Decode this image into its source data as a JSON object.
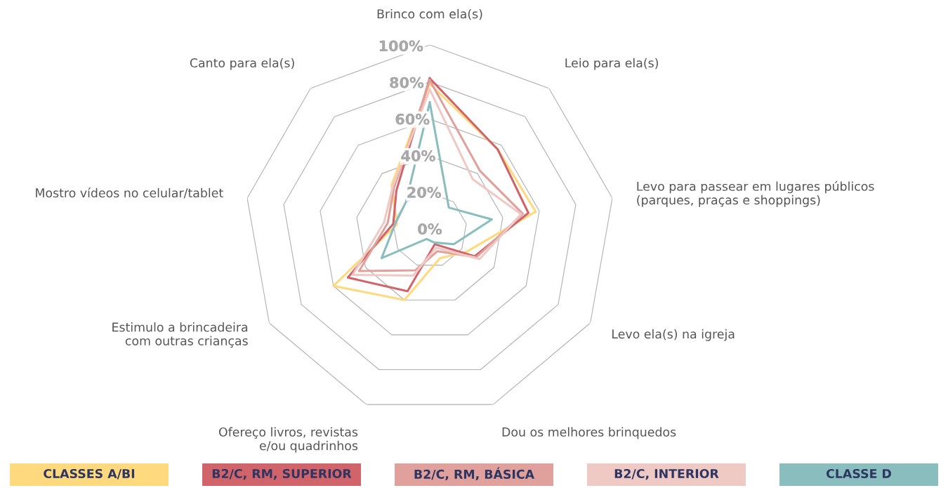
{
  "chart_data": {
    "type": "radar",
    "categories": [
      "Brinco com ela(s)",
      "Leio para ela(s)",
      "Levo para passear em lugares públicos\n(parques, praças e shoppings)",
      "Levo ela(s) na igreja",
      "Dou os melhores brinquedos",
      "Ofereço livros, revistas\ne/ou quadrinhos",
      "Estimulo a brincadeira\ncom outras crianças",
      "Mostro vídeos no celular/tablet",
      "Canto para ela(s)"
    ],
    "series": [
      {
        "name": "CLASSES A/BI",
        "color": "#ffd97d",
        "values": [
          79,
          57,
          58,
          23,
          16,
          40,
          60,
          18,
          32
        ]
      },
      {
        "name": "B2/C, RM, SUPERIOR",
        "color": "#d0646a",
        "values": [
          82,
          57,
          54,
          28,
          8,
          35,
          51,
          20,
          28
        ]
      },
      {
        "name": "B2/C, RM, BÁSICA",
        "color": "#e0a09c",
        "values": [
          81,
          42,
          51,
          29,
          12,
          23,
          44,
          23,
          30
        ]
      },
      {
        "name": "B2/C, INTERIOR",
        "color": "#efc9c4",
        "values": [
          76,
          36,
          50,
          31,
          10,
          26,
          48,
          25,
          31
        ]
      },
      {
        "name": "CLASSE D",
        "color": "#8abdbd",
        "values": [
          69,
          16,
          34,
          15,
          7,
          5,
          30,
          19,
          20
        ]
      }
    ],
    "ylim": [
      0,
      100
    ],
    "yticks": [
      {
        "value": 0,
        "label": "0%"
      },
      {
        "value": 20,
        "label": "20%"
      },
      {
        "value": 40,
        "label": "40%"
      },
      {
        "value": 60,
        "label": "60%"
      },
      {
        "value": 80,
        "label": "80%"
      },
      {
        "value": 100,
        "label": "100%"
      }
    ],
    "grid": true,
    "legend": "bottom",
    "marker": "none",
    "line_style": "solid"
  }
}
